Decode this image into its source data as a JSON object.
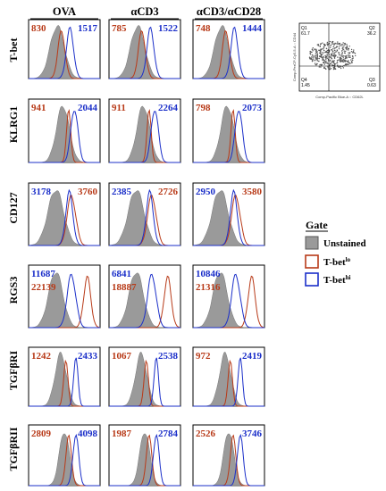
{
  "colors": {
    "unstained": "#9a9a9a",
    "tbet_lo": "#b83a18",
    "tbet_hi": "#1b2fc9",
    "frame": "#000000"
  },
  "columns": [
    "OVA",
    "αCD3",
    "αCD3/αCD28"
  ],
  "rows": [
    "T-bet",
    "KLRG1",
    "CD127",
    "RGS3",
    "TGFβRI",
    "TGFβRII"
  ],
  "chart_data": {
    "type": "histogram-grid",
    "values": [
      [
        [
          {
            "lo": "830",
            "hi": "1517"
          }
        ],
        [
          {
            "lo": "785",
            "hi": "1522"
          }
        ],
        [
          {
            "lo": "748",
            "hi": "1444"
          }
        ]
      ],
      [
        [
          {
            "lo": "941",
            "hi": "2044"
          }
        ],
        [
          {
            "lo": "911",
            "hi": "2264"
          }
        ],
        [
          {
            "lo": "798",
            "hi": "2073"
          }
        ]
      ],
      [
        [
          {
            "hi": "3178",
            "lo": "3760"
          }
        ],
        [
          {
            "hi": "2385",
            "lo": "2726"
          }
        ],
        [
          {
            "hi": "2950",
            "lo": "3580"
          }
        ]
      ],
      [
        [
          {
            "hi": "11687",
            "lo": "22139"
          }
        ],
        [
          {
            "hi": "6841",
            "lo": "18887"
          }
        ],
        [
          {
            "hi": "10846",
            "lo": "21316"
          }
        ]
      ],
      [
        [
          {
            "lo": "1242",
            "hi": "2433"
          }
        ],
        [
          {
            "lo": "1067",
            "hi": "2538"
          }
        ],
        [
          {
            "lo": "972",
            "hi": "2419"
          }
        ]
      ],
      [
        [
          {
            "lo": "2809",
            "hi": "4098"
          }
        ],
        [
          {
            "lo": "1987",
            "hi": "2784"
          }
        ],
        [
          {
            "lo": "2526",
            "hi": "3746"
          }
        ]
      ]
    ]
  },
  "legend": {
    "title": "Gate",
    "items": [
      {
        "key": "unstained",
        "label": "Unstained",
        "sup": ""
      },
      {
        "key": "tbet_lo",
        "label": "T-bet",
        "sup": "lo"
      },
      {
        "key": "tbet_hi",
        "label": "T-bet",
        "sup": "hi"
      }
    ]
  },
  "scatter": {
    "quadrants": [
      {
        "name": "Q1",
        "value": "61.7"
      },
      {
        "name": "Q2",
        "value": "36.2"
      },
      {
        "name": "Q3",
        "value": "0.63"
      },
      {
        "name": "Q4",
        "value": "1.45"
      }
    ],
    "xlabel": "Comp-Pacific Blue-A :: CD62L",
    "ylabel": "Comp-PerCP-Cy5-5-A :: CD44"
  }
}
